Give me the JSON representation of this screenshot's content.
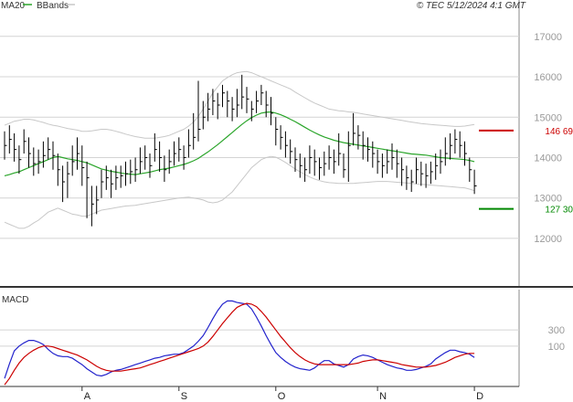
{
  "header": {
    "ma_label": "MA20",
    "bbands_label": "BBands",
    "copyright": "© TEC 5/12/2024 4:1 GMT"
  },
  "colors": {
    "price": "#000000",
    "ma": "#2aa52a",
    "bands": "#c8c8c8",
    "resistance": "#cc0000",
    "support": "#008800",
    "macd": "#2222cc",
    "signal": "#cc0000",
    "grid": "#d4d4d4",
    "axis_text": "#9a9a9a"
  },
  "chart_data": [
    {
      "type": "ohlc",
      "y_axis_ticks": [
        "17000",
        "16000",
        "15000",
        "14000",
        "13000",
        "12000"
      ],
      "y_tick_values": [
        17000,
        16000,
        15000,
        14000,
        13000,
        12000
      ],
      "ylim": [
        10800,
        17900
      ],
      "x_tick_labels": [
        "A",
        "S",
        "O",
        "N",
        "D"
      ],
      "x_tick_index": [
        16,
        36,
        56,
        77,
        97
      ],
      "levels": [
        {
          "name": "resistance",
          "label": "146 69",
          "value": 14669
        },
        {
          "name": "support",
          "label": "127 30",
          "value": 12730
        }
      ],
      "close": [
        14300,
        14450,
        14200,
        13950,
        14400,
        14100,
        13850,
        13900,
        14050,
        14200,
        14050,
        13700,
        13400,
        13600,
        13900,
        14100,
        13750,
        13500,
        12850,
        12950,
        13400,
        13500,
        13350,
        13500,
        13550,
        13600,
        13650,
        13700,
        13900,
        14000,
        13800,
        14200,
        14000,
        13700,
        13900,
        14100,
        14200,
        14000,
        14300,
        14500,
        14700,
        15000,
        15200,
        15400,
        15300,
        15600,
        15400,
        15200,
        15300,
        15500,
        15450,
        15200,
        15400,
        15600,
        15300,
        15100,
        14700,
        14500,
        14300,
        14150,
        13950,
        13800,
        13700,
        14000,
        13900,
        13750,
        13850,
        14000,
        13900,
        14100,
        13700,
        14300,
        14600,
        14550,
        14300,
        14200,
        14100,
        13900,
        13800,
        13900,
        14000,
        13850,
        13700,
        13500,
        13400,
        13700,
        13600,
        13550,
        13650,
        13800,
        13900,
        14100,
        14300,
        14450,
        14300,
        14100,
        13700,
        13300
      ],
      "high": [
        14650,
        14800,
        14600,
        14300,
        14700,
        14500,
        14250,
        14200,
        14400,
        14500,
        14400,
        14100,
        13800,
        13900,
        14300,
        14500,
        14300,
        13900,
        13300,
        13300,
        13700,
        13800,
        13700,
        13800,
        13800,
        13900,
        13950,
        14000,
        14250,
        14300,
        14100,
        14600,
        14400,
        14050,
        14200,
        14400,
        14500,
        14300,
        14700,
        15100,
        15900,
        15400,
        15600,
        15700,
        15600,
        15800,
        15650,
        15500,
        15700,
        16050,
        15750,
        15400,
        15650,
        15800,
        15650,
        15500,
        15000,
        14800,
        14650,
        14450,
        14250,
        14100,
        14000,
        14300,
        14200,
        14000,
        14150,
        14300,
        14200,
        14600,
        14100,
        14650,
        15100,
        14800,
        14650,
        14500,
        14400,
        14200,
        14100,
        14200,
        14350,
        14200,
        14000,
        13800,
        13700,
        14000,
        13900,
        13850,
        13900,
        14100,
        14200,
        14500,
        14600,
        14700,
        14650,
        14400,
        14000,
        13700
      ],
      "low": [
        13950,
        14100,
        13900,
        13600,
        14100,
        13750,
        13550,
        13600,
        13750,
        13950,
        13700,
        13300,
        12900,
        13000,
        13550,
        13700,
        13300,
        12500,
        12300,
        12600,
        13000,
        13200,
        13000,
        13200,
        13250,
        13300,
        13350,
        13400,
        13600,
        13700,
        13500,
        13900,
        13650,
        13400,
        13600,
        13800,
        13900,
        13700,
        14000,
        14200,
        14400,
        14700,
        14900,
        15050,
        14950,
        15250,
        15000,
        14900,
        15000,
        15200,
        15100,
        14900,
        15100,
        15300,
        15000,
        14800,
        14300,
        14200,
        14000,
        13850,
        13650,
        13500,
        13400,
        13600,
        13550,
        13450,
        13550,
        13700,
        13600,
        13800,
        13500,
        13400,
        14300,
        14200,
        13950,
        13900,
        13750,
        13600,
        13500,
        13600,
        13700,
        13500,
        13300,
        13200,
        13150,
        13350,
        13300,
        13250,
        13350,
        13450,
        13600,
        13800,
        13950,
        14100,
        14000,
        13800,
        13400,
        13100
      ],
      "ma20": [
        13550,
        13580,
        13620,
        13650,
        13700,
        13750,
        13800,
        13850,
        13900,
        13950,
        14000,
        14030,
        14000,
        13970,
        13950,
        13930,
        13900,
        13870,
        13820,
        13770,
        13720,
        13690,
        13660,
        13640,
        13620,
        13600,
        13590,
        13580,
        13600,
        13620,
        13640,
        13670,
        13700,
        13720,
        13740,
        13770,
        13800,
        13830,
        13870,
        13920,
        13980,
        14060,
        14140,
        14230,
        14320,
        14420,
        14520,
        14620,
        14720,
        14820,
        14910,
        14990,
        15050,
        15100,
        15120,
        15130,
        15100,
        15060,
        15010,
        14950,
        14890,
        14820,
        14750,
        14680,
        14620,
        14560,
        14510,
        14470,
        14430,
        14400,
        14370,
        14350,
        14330,
        14310,
        14290,
        14270,
        14250,
        14230,
        14210,
        14190,
        14170,
        14150,
        14130,
        14110,
        14090,
        14080,
        14070,
        14060,
        14040,
        14020,
        14000,
        13990,
        13980,
        13970,
        13960,
        13950,
        13930,
        13900
      ],
      "bb_upper": [
        14800,
        14850,
        14900,
        14920,
        14950,
        14950,
        14930,
        14900,
        14870,
        14830,
        14800,
        14780,
        14750,
        14720,
        14700,
        14680,
        14650,
        14650,
        14660,
        14680,
        14700,
        14700,
        14680,
        14650,
        14620,
        14580,
        14550,
        14520,
        14500,
        14480,
        14480,
        14480,
        14500,
        14520,
        14550,
        14600,
        14650,
        14700,
        14780,
        14880,
        15020,
        15200,
        15400,
        15600,
        15750,
        15900,
        15980,
        16050,
        16100,
        16120,
        16130,
        16100,
        16050,
        16000,
        15950,
        15900,
        15850,
        15800,
        15750,
        15700,
        15620,
        15550,
        15480,
        15410,
        15350,
        15300,
        15250,
        15200,
        15180,
        15160,
        15150,
        15130,
        15120,
        15100,
        15080,
        15060,
        15040,
        15020,
        15000,
        14980,
        14960,
        14940,
        14920,
        14900,
        14880,
        14860,
        14840,
        14830,
        14820,
        14810,
        14800,
        14790,
        14780,
        14770,
        14770,
        14780,
        14800,
        14820
      ],
      "bb_lower": [
        12400,
        12350,
        12300,
        12250,
        12250,
        12300,
        12380,
        12450,
        12550,
        12650,
        12700,
        12750,
        12700,
        12650,
        12600,
        12580,
        12550,
        12550,
        12600,
        12650,
        12700,
        12720,
        12740,
        12760,
        12780,
        12800,
        12810,
        12820,
        12840,
        12860,
        12880,
        12900,
        12920,
        12940,
        12960,
        12980,
        13000,
        13010,
        13020,
        13000,
        12980,
        12950,
        12900,
        12880,
        12900,
        12950,
        13050,
        13150,
        13300,
        13450,
        13600,
        13750,
        13850,
        13950,
        14000,
        14030,
        14010,
        13950,
        13880,
        13800,
        13720,
        13650,
        13580,
        13520,
        13470,
        13430,
        13400,
        13380,
        13370,
        13360,
        13360,
        13360,
        13360,
        13370,
        13380,
        13390,
        13400,
        13410,
        13410,
        13410,
        13400,
        13390,
        13380,
        13370,
        13360,
        13350,
        13340,
        13330,
        13320,
        13310,
        13300,
        13290,
        13280,
        13270,
        13260,
        13250,
        13220,
        13180
      ]
    },
    {
      "type": "line",
      "title": "MACD",
      "y_axis_ticks": [
        "300",
        "100"
      ],
      "y_tick_values": [
        300,
        100
      ],
      "ylim": [
        -400,
        800
      ],
      "series": [
        {
          "key": "macd",
          "values": [
            -300,
            -120,
            40,
            100,
            140,
            170,
            170,
            150,
            120,
            60,
            10,
            -20,
            -30,
            -30,
            -50,
            -90,
            -130,
            -180,
            -220,
            -260,
            -270,
            -250,
            -220,
            -200,
            -190,
            -170,
            -150,
            -130,
            -110,
            -90,
            -70,
            -50,
            -40,
            -20,
            -10,
            0,
            0,
            20,
            60,
            100,
            160,
            230,
            330,
            440,
            540,
            620,
            660,
            660,
            640,
            630,
            620,
            560,
            460,
            350,
            230,
            120,
            20,
            -40,
            -90,
            -130,
            -160,
            -180,
            -190,
            -200,
            -170,
            -120,
            -80,
            -80,
            -120,
            -140,
            -160,
            -130,
            -60,
            -30,
            -10,
            -20,
            -40,
            -70,
            -100,
            -130,
            -150,
            -170,
            -180,
            -200,
            -200,
            -190,
            -170,
            -150,
            -120,
            -60,
            -20,
            20,
            50,
            50,
            30,
            20,
            0,
            -40
          ]
        },
        {
          "key": "signal",
          "values": [
            -380,
            -300,
            -200,
            -110,
            -40,
            10,
            50,
            80,
            100,
            100,
            90,
            70,
            50,
            30,
            10,
            -10,
            -40,
            -70,
            -110,
            -150,
            -180,
            -200,
            -210,
            -210,
            -210,
            -200,
            -190,
            -180,
            -170,
            -150,
            -130,
            -110,
            -90,
            -70,
            -50,
            -30,
            -10,
            10,
            30,
            50,
            70,
            100,
            150,
            220,
            300,
            380,
            450,
            520,
            580,
            610,
            630,
            620,
            590,
            530,
            460,
            380,
            300,
            220,
            150,
            80,
            20,
            -30,
            -70,
            -100,
            -120,
            -130,
            -130,
            -130,
            -130,
            -130,
            -130,
            -130,
            -120,
            -110,
            -90,
            -80,
            -70,
            -70,
            -80,
            -90,
            -100,
            -110,
            -130,
            -140,
            -150,
            -160,
            -160,
            -160,
            -150,
            -140,
            -120,
            -100,
            -70,
            -40,
            -20,
            0,
            10,
            10
          ]
        }
      ]
    }
  ]
}
